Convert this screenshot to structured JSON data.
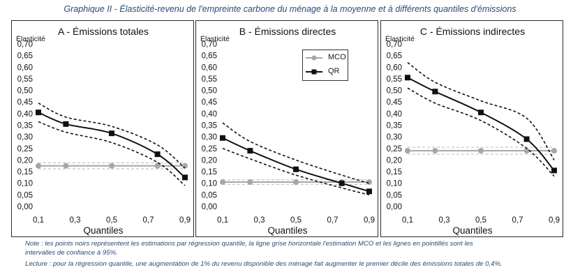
{
  "figure_title": "Graphique II - Élasticité-revenu de l'empreinte carbone du ménage à la moyenne et à différents quantiles d'émissions",
  "note_line1": "Note : les points noirs représentent les estimations par régression quantile, la ligne grise horizontale l'estimation MCO et les lignes en pointillés sont les",
  "note_line2": "intervalles de confiance à 95%.",
  "lecture": "Lecture : pour la régression quantile, une augmentation de 1% du revenu disponible des ménage fait augmenter le premier décile des émissions totales de 0,4%.",
  "colors": {
    "qr": "#111111",
    "mco": "#a6a6a6",
    "ci": "#111111",
    "mco_ci": "#c8c8c8"
  },
  "chart_data": [
    {
      "type": "line",
      "title": "A - Émissions totales",
      "ylabel": "Élasticité",
      "xlabel": "Quantiles",
      "ylim": [
        0,
        0.7
      ],
      "yticks": [
        "0,00",
        "0,05",
        "0,10",
        "0,15",
        "0,20",
        "0,25",
        "0,30",
        "0,35",
        "0,40",
        "0,45",
        "0,50",
        "0,55",
        "0,60",
        "0,65",
        "0,70"
      ],
      "xticks": [
        "0,1",
        "0,3",
        "0,5",
        "0,7",
        "0,9"
      ],
      "series": [
        {
          "name": "MCO",
          "x": [
            0.1,
            0.25,
            0.5,
            0.75,
            0.9
          ],
          "values": [
            0.175,
            0.175,
            0.175,
            0.175,
            0.175
          ],
          "ci_low": [
            0.162,
            0.162,
            0.162,
            0.162,
            0.162
          ],
          "ci_high": [
            0.188,
            0.188,
            0.188,
            0.188,
            0.188
          ]
        },
        {
          "name": "QR",
          "x": [
            0.1,
            0.25,
            0.5,
            0.75,
            0.9
          ],
          "values": [
            0.405,
            0.355,
            0.315,
            0.225,
            0.125
          ],
          "ci_low": [
            0.365,
            0.32,
            0.275,
            0.19,
            0.09
          ],
          "ci_high": [
            0.445,
            0.385,
            0.345,
            0.265,
            0.165
          ]
        }
      ],
      "show_legend": false
    },
    {
      "type": "line",
      "title": "B - Émissions directes",
      "ylabel": "Élasticité",
      "xlabel": "Quantiles",
      "ylim": [
        0,
        0.7
      ],
      "yticks": [
        "0,00",
        "0,05",
        "0,10",
        "0,15",
        "0,20",
        "0,25",
        "0,30",
        "0,35",
        "0,40",
        "0,45",
        "0,50",
        "0,55",
        "0,60",
        "0,65",
        "0,70"
      ],
      "xticks": [
        "0,1",
        "0,3",
        "0,5",
        "0,7",
        "0,9"
      ],
      "series": [
        {
          "name": "MCO",
          "x": [
            0.1,
            0.25,
            0.5,
            0.75,
            0.9
          ],
          "values": [
            0.105,
            0.105,
            0.105,
            0.105,
            0.105
          ],
          "ci_low": [
            0.095,
            0.095,
            0.095,
            0.095,
            0.095
          ],
          "ci_high": [
            0.115,
            0.115,
            0.115,
            0.115,
            0.115
          ]
        },
        {
          "name": "QR",
          "x": [
            0.1,
            0.25,
            0.5,
            0.75,
            0.9
          ],
          "values": [
            0.295,
            0.24,
            0.16,
            0.1,
            0.065
          ],
          "ci_low": [
            0.25,
            0.205,
            0.135,
            0.08,
            0.05
          ],
          "ci_high": [
            0.36,
            0.28,
            0.2,
            0.135,
            0.1
          ]
        }
      ],
      "show_legend": true,
      "legend": [
        "MCO",
        "QR"
      ]
    },
    {
      "type": "line",
      "title": "C - Émissions indirectes",
      "ylabel": "Élasticité",
      "xlabel": "Quantiles",
      "ylim": [
        0,
        0.7
      ],
      "yticks": [
        "0,00",
        "0,05",
        "0,10",
        "0,15",
        "0,20",
        "0,25",
        "0,30",
        "0,35",
        "0,40",
        "0,45",
        "0,50",
        "0,55",
        "0,60",
        "0,65",
        "0,70"
      ],
      "xticks": [
        "0,1",
        "0,3",
        "0,5",
        "0,7",
        "0,9"
      ],
      "series": [
        {
          "name": "MCO",
          "x": [
            0.1,
            0.25,
            0.5,
            0.75,
            0.9
          ],
          "values": [
            0.24,
            0.24,
            0.24,
            0.24,
            0.24
          ],
          "ci_low": [
            0.225,
            0.225,
            0.225,
            0.225,
            0.225
          ],
          "ci_high": [
            0.255,
            0.255,
            0.255,
            0.255,
            0.255
          ]
        },
        {
          "name": "QR",
          "x": [
            0.1,
            0.25,
            0.5,
            0.75,
            0.9
          ],
          "values": [
            0.555,
            0.495,
            0.405,
            0.29,
            0.155
          ],
          "ci_low": [
            0.51,
            0.445,
            0.37,
            0.25,
            0.13
          ],
          "ci_high": [
            0.62,
            0.535,
            0.455,
            0.38,
            0.2
          ]
        }
      ],
      "show_legend": false
    }
  ]
}
